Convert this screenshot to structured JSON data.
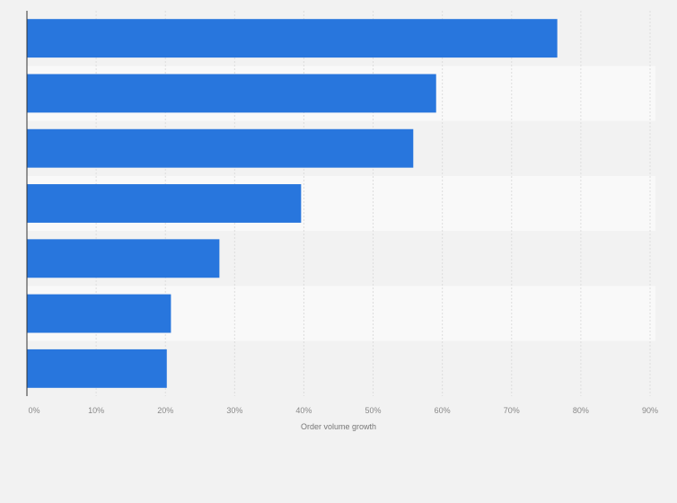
{
  "chart_data": {
    "type": "bar",
    "orientation": "horizontal",
    "categories": [
      "",
      "",
      "",
      "",
      "",
      "",
      ""
    ],
    "values": [
      76.6,
      59.1,
      55.8,
      39.6,
      27.8,
      20.8,
      20.2
    ],
    "title": "",
    "xlabel": "Order volume growth",
    "ylabel": "",
    "xlim": [
      0,
      90
    ],
    "xticks": [
      "0%",
      "10%",
      "20%",
      "30%",
      "40%",
      "50%",
      "60%",
      "70%",
      "80%",
      "90%"
    ],
    "grid": true,
    "bar_color": "#2876dd"
  }
}
